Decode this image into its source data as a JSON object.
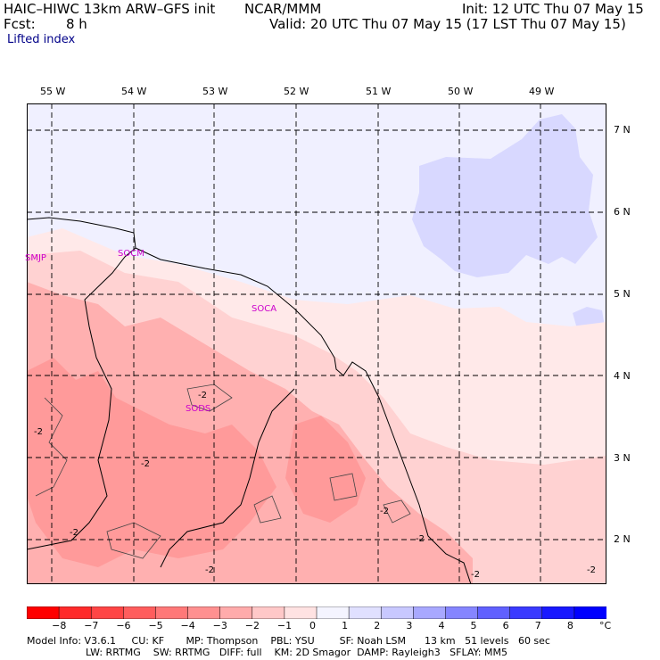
{
  "header": {
    "model": "HAIC–HIWC 13km ARW–GFS init",
    "org": "NCAR/MMM",
    "init": "Init: 12 UTC Thu 07 May 15",
    "fcst_label": "Fcst:",
    "fcst_value": "8 h",
    "valid": "Valid: 20 UTC Thu 07 May 15 (17 LST Thu 07 May 15)",
    "field": "Lifted index"
  },
  "map": {
    "lon_labels": [
      "55 W",
      "54 W",
      "53 W",
      "52 W",
      "51 W",
      "50 W",
      "49 W"
    ],
    "lat_labels": [
      "7 N",
      "6 N",
      "5 N",
      "4 N",
      "3 N",
      "2 N"
    ],
    "airports": [
      "SMJP",
      "SOCM",
      "SOCA",
      "SODS"
    ],
    "contour_labels": [
      "-2",
      "-2",
      "-2",
      "-2",
      "-2",
      "-2",
      "-2",
      "-2",
      "-2"
    ]
  },
  "colorbar": {
    "ticks": [
      "−8",
      "−7",
      "−6",
      "−5",
      "−4",
      "−3",
      "−2",
      "−1",
      "0",
      "1",
      "2",
      "3",
      "4",
      "5",
      "6",
      "7",
      "8"
    ],
    "unit": "°C",
    "colors": [
      "#ff0000",
      "#ff2a2a",
      "#ff4545",
      "#ff5d5d",
      "#ff7878",
      "#ff9090",
      "#ffabab",
      "#ffc8c8",
      "#ffe2e2",
      "#f4f4ff",
      "#e0e0ff",
      "#c8c8ff",
      "#a8a8ff",
      "#8585ff",
      "#6060ff",
      "#3a3aff",
      "#1818ff",
      "#0000ff"
    ]
  },
  "footer": {
    "line1": "Model Info: V3.6.1     CU: KF       MP: Thompson    PBL: YSU        SF: Noah LSM      13 km   51 levels   60 sec",
    "line2": "LW: RRTMG    SW: RRTMG   DIFF: full    KM: 2D Smagor  DAMP: Rayleigh3   SFLAY: MM5"
  }
}
